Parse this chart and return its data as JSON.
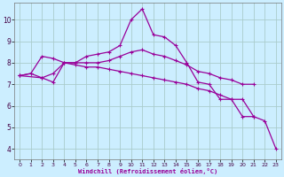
{
  "xlabel": "Windchill (Refroidissement éolien,°C)",
  "bg_color": "#cceeff",
  "line_color": "#990099",
  "grid_color": "#aacccc",
  "xlim": [
    -0.5,
    23.5
  ],
  "ylim": [
    3.5,
    10.8
  ],
  "yticks": [
    4,
    5,
    6,
    7,
    8,
    9,
    10
  ],
  "xticks": [
    0,
    1,
    2,
    3,
    4,
    5,
    6,
    7,
    8,
    9,
    10,
    11,
    12,
    13,
    14,
    15,
    16,
    17,
    18,
    19,
    20,
    21,
    22,
    23
  ],
  "series": [
    {
      "x": [
        0,
        1,
        2,
        3,
        4,
        5,
        6,
        7,
        8,
        9,
        10,
        11,
        12,
        13,
        14,
        15,
        16,
        17,
        18,
        19,
        20,
        21,
        22,
        23
      ],
      "y": [
        7.4,
        7.5,
        8.3,
        8.2,
        8.0,
        8.0,
        8.3,
        8.4,
        8.5,
        8.8,
        10.0,
        10.5,
        9.3,
        9.2,
        8.8,
        8.0,
        7.1,
        7.0,
        6.3,
        6.3,
        5.5,
        5.5,
        null,
        null
      ]
    },
    {
      "x": [
        0,
        1,
        2,
        3,
        4,
        5,
        6,
        7,
        8,
        9,
        10,
        11,
        12,
        13,
        14,
        15,
        16,
        17,
        18,
        19,
        20,
        21,
        22,
        23
      ],
      "y": [
        7.4,
        7.5,
        7.3,
        7.5,
        8.0,
        8.0,
        8.0,
        8.0,
        8.1,
        8.3,
        8.5,
        8.6,
        8.4,
        8.3,
        8.1,
        7.9,
        7.6,
        7.5,
        7.3,
        7.2,
        7.0,
        7.0,
        null,
        null
      ]
    },
    {
      "x": [
        0,
        2,
        3,
        4,
        5,
        6,
        7,
        8,
        9,
        10,
        11,
        12,
        13,
        14,
        15,
        16,
        17,
        18,
        19,
        20,
        21,
        22,
        23
      ],
      "y": [
        7.4,
        7.3,
        7.1,
        8.0,
        7.9,
        7.8,
        7.8,
        7.7,
        7.6,
        7.5,
        7.4,
        7.3,
        7.2,
        7.1,
        7.0,
        6.8,
        6.7,
        6.5,
        6.3,
        6.3,
        5.5,
        5.3,
        4.0
      ]
    }
  ]
}
